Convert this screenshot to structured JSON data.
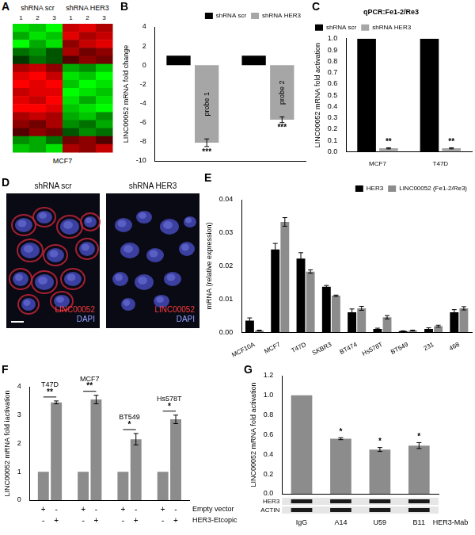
{
  "chart_data": [
    {
      "type": "heatmap",
      "panel": "A",
      "groups": [
        "shRNA scr",
        "shRNA HER3"
      ],
      "columns": [
        1,
        2,
        3,
        1,
        2,
        3
      ],
      "xlabel": "MCF7",
      "cells": [
        [
          -0.8,
          -0.7,
          -0.9,
          0.7,
          0.8,
          0.6
        ],
        [
          -0.6,
          -0.8,
          -0.7,
          0.8,
          0.6,
          0.7
        ],
        [
          -0.9,
          -0.6,
          -0.8,
          0.5,
          0.7,
          0.8
        ],
        [
          -0.4,
          -0.5,
          -0.3,
          0.6,
          0.4,
          0.5
        ],
        [
          -0.2,
          -0.4,
          -0.3,
          0.3,
          0.5,
          0.4
        ],
        [
          0.6,
          0.7,
          0.5,
          -0.6,
          -0.5,
          -0.7
        ],
        [
          0.8,
          0.9,
          0.7,
          -0.8,
          -0.7,
          -0.9
        ],
        [
          0.9,
          0.8,
          0.9,
          -0.7,
          -0.9,
          -0.8
        ],
        [
          0.7,
          0.8,
          0.8,
          -0.9,
          -0.8,
          -0.7
        ],
        [
          0.8,
          0.7,
          0.9,
          -0.8,
          -0.6,
          -0.8
        ],
        [
          0.9,
          0.9,
          0.8,
          -0.7,
          -0.8,
          -0.9
        ],
        [
          0.6,
          0.7,
          0.6,
          -0.6,
          -0.7,
          -0.5
        ],
        [
          0.5,
          0.4,
          0.6,
          -0.5,
          -0.4,
          -0.6
        ],
        [
          0.3,
          0.5,
          0.4,
          -0.3,
          -0.5,
          -0.4
        ],
        [
          -0.5,
          -0.6,
          -0.4,
          0.4,
          0.5,
          0.3
        ],
        [
          -0.7,
          -0.6,
          -0.8,
          0.6,
          0.5,
          0.7
        ]
      ]
    },
    {
      "type": "bar",
      "panel": "B",
      "ylabel": "LINC00052 mRNA fold change",
      "categories": [
        "probe 1",
        "probe 2"
      ],
      "series": [
        {
          "name": "shRNA scr",
          "color": "#000000",
          "values": [
            1,
            1
          ]
        },
        {
          "name": "shRNA HER3",
          "color": "#a6a6a6",
          "values": [
            -8.1,
            -5.7
          ],
          "errors": [
            0.4,
            0.3
          ],
          "significance": [
            "***",
            "***"
          ]
        }
      ],
      "ylim": [
        -10,
        4
      ],
      "yticks": [
        -10,
        -8,
        -6,
        -4,
        -2,
        0,
        2,
        4
      ],
      "grid": false,
      "legend": "upper right",
      "tick_labels": "y"
    },
    {
      "type": "bar",
      "panel": "C",
      "title": "qPCR:Fe1-2/Re3",
      "ylabel": "LINC00052 mRNA fold activation",
      "categories": [
        "MCF7",
        "T47D"
      ],
      "series": [
        {
          "name": "shRNA scr",
          "color": "#000000",
          "values": [
            1,
            1
          ]
        },
        {
          "name": "shRNA HER3",
          "color": "#a6a6a6",
          "values": [
            0.03,
            0.03
          ],
          "errors": [
            0.005,
            0.005
          ],
          "significance": [
            "**",
            "**"
          ]
        }
      ],
      "ylim": [
        0,
        1
      ],
      "yticks": [
        {
          "value": 0,
          "label": "0.0"
        },
        0.1,
        0.2,
        0.3,
        0.4,
        0.5,
        0.6,
        0.7,
        0.8,
        0.9,
        {
          "value": 1,
          "label": "1.0"
        }
      ],
      "grid": false,
      "legend": "upper left"
    },
    {
      "type": "bar",
      "panel": "E",
      "ylabel": "mRNA (relative expression)",
      "categories": [
        "MCF10A",
        "MCF7",
        "T47D",
        "SKBR3",
        "BT474",
        "Hs578T",
        "BT549",
        "231",
        "468"
      ],
      "series": [
        {
          "name": "HER3",
          "color": "#000000",
          "values": [
            0.0035,
            0.025,
            0.0222,
            0.0137,
            0.006,
            0.001,
            0.0003,
            0.001,
            0.006
          ],
          "errors": [
            0.0008,
            0.0018,
            0.0018,
            0.0004,
            0.001,
            0.0002,
            0.0001,
            0.0003,
            0.0008
          ]
        },
        {
          "name": "LINC00052 (Fe1-2/Re3)",
          "color": "#8c8c8c",
          "values": [
            0.0005,
            0.0333,
            0.0183,
            0.011,
            0.0072,
            0.0045,
            0.0005,
            0.0018,
            0.0072
          ],
          "errors": [
            0.0001,
            0.0013,
            0.0005,
            0.0002,
            0.0006,
            0.0005,
            0.0001,
            0.0003,
            0.0005
          ]
        }
      ],
      "ylim": [
        0,
        0.04
      ],
      "yticks": [
        {
          "value": 0,
          "label": "0.00"
        },
        0.01,
        0.02,
        0.03,
        0.04
      ],
      "grid": false,
      "legend": "upper right"
    },
    {
      "type": "bar",
      "panel": "F",
      "ylabel": "LINC00052 mRNA fold iactivation",
      "categories": [
        "T47D",
        "MCF7",
        "BT549",
        "Hs578T"
      ],
      "series": [
        {
          "color": "#8c8c8c",
          "values": [
            1,
            1,
            1,
            1
          ]
        },
        {
          "color": "#8c8c8c",
          "values": [
            3.45,
            3.55,
            2.15,
            2.85
          ],
          "errors": [
            0.05,
            0.15,
            0.2,
            0.15
          ]
        }
      ],
      "significance": [
        "**",
        "**",
        "*",
        "*"
      ],
      "condition_table": [
        {
          "label": "Empty vector",
          "marks": [
            "+",
            "-",
            "+",
            "-",
            "+",
            "-",
            "+",
            "-"
          ]
        },
        {
          "label": "HER3-Etcopic",
          "marks": [
            "-",
            "+",
            "-",
            "+",
            "-",
            "+",
            "-",
            "+"
          ]
        }
      ],
      "ylim": [
        0,
        4
      ],
      "yticks": [
        0,
        1,
        2,
        3,
        4
      ],
      "grid": false,
      "tick_labels": "y"
    },
    {
      "type": "bar",
      "panel": "G",
      "ylabel": "LINC00052 mRNA fold activation",
      "categories": [
        "IgG",
        "A14",
        "U59",
        "B11"
      ],
      "values": [
        1,
        0.56,
        0.45,
        0.49
      ],
      "errors": [
        0,
        0.01,
        0.02,
        0.03
      ],
      "significance": [
        null,
        "*",
        "*",
        "*"
      ],
      "color": "#8c8c8c",
      "blot": {
        "rows": [
          "HER3",
          "ACTIN"
        ],
        "xlabel": "HER3-Mab"
      },
      "ylim": [
        0,
        1.2
      ],
      "yticks": [
        {
          "value": 0,
          "label": "0.0"
        },
        0.2,
        0.4,
        0.6,
        0.8,
        {
          "value": 1,
          "label": "1.0"
        },
        1.2
      ],
      "grid": false,
      "tick_labels": "y"
    }
  ],
  "image_panel": {
    "panel": "D",
    "images": [
      {
        "title": "shRNA scr",
        "stain_labels": [
          "LINC00052",
          "DAPI"
        ]
      },
      {
        "title": "shRNA HER3",
        "stain_labels": [
          "LINC00052",
          "DAPI"
        ]
      }
    ]
  }
}
